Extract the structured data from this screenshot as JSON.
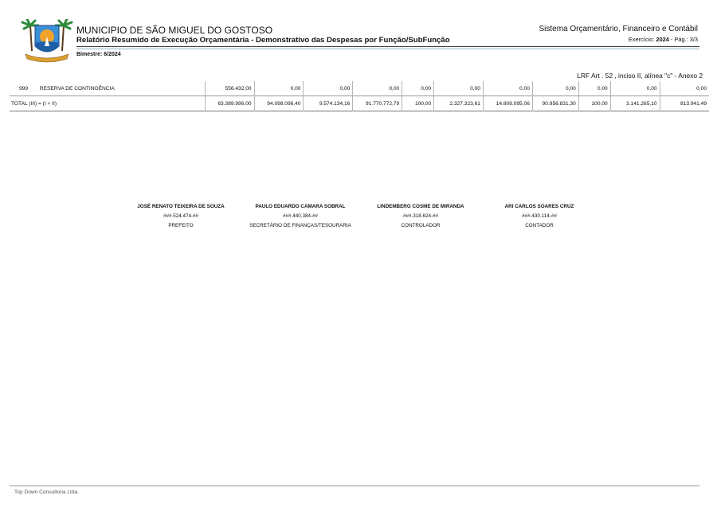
{
  "header": {
    "municipio": "MUNICIPIO DE SÃO MIGUEL DO GOSTOSO",
    "report_title": "Relatório Resumido de Execução Orçamentária - Demonstrativo das Despesas por Função/SubFunção",
    "system_name": "Sistema Orçamentário, Financeiro e Contábil",
    "exercicio_label": "Exercício:",
    "exercicio_year": "2024",
    "page_label": "-  Pág.: 3/3",
    "bimestre": "Bimestre: 6/2024",
    "lrf": "LRF Art . 52 , inciso II, alínea \"c\" - Anexo 2"
  },
  "table": {
    "rows": [
      {
        "code": "999",
        "label": "RESERVA DE CONTINGÊNCIA",
        "values": [
          "556.432,00",
          "0,00",
          "0,00",
          "0,00",
          "0,00",
          "0,00",
          "0,00",
          "0,00",
          "0,00",
          "0,00",
          "0,00"
        ]
      }
    ],
    "total": {
      "label": "TOTAL (III) = (I + II)",
      "values": [
        "63.389.996,00",
        "94.098.096,40",
        "9.574.134,16",
        "91.770.772,79",
        "100,00",
        "2.327.323,61",
        "14.808.095,06",
        "90.956.831,30",
        "100,00",
        "3.141.265,10",
        "813.941,49"
      ]
    }
  },
  "signatures": [
    {
      "name": "JOSÉ RENATO TEIXEIRA DE SOUZA",
      "cpf": "###.524.474-##",
      "role": "PREFEITO"
    },
    {
      "name": "PAULO EDUARDO CAMARA SOBRAL",
      "cpf": "###.440.384-##",
      "role": "SECRETÁRIO DE FINANÇAS/TESOURARIA"
    },
    {
      "name": "LINDEMBERG COSME DE MIRANDA",
      "cpf": "###.318.624-##",
      "role": "CONTROLADOR"
    },
    {
      "name": "ARI CARLOS SOARES CRUZ",
      "cpf": "###.430.114-##",
      "role": "CONTADOR"
    }
  ],
  "footer": {
    "company": "Top Down Consultoria Ltda."
  },
  "colors": {
    "logo_sky": "#3a8fd6",
    "logo_sun": "#f0a22c",
    "logo_sea": "#1e5fa8",
    "logo_palm": "#2e8b3a",
    "rule_blue": "#9bb7c9"
  }
}
